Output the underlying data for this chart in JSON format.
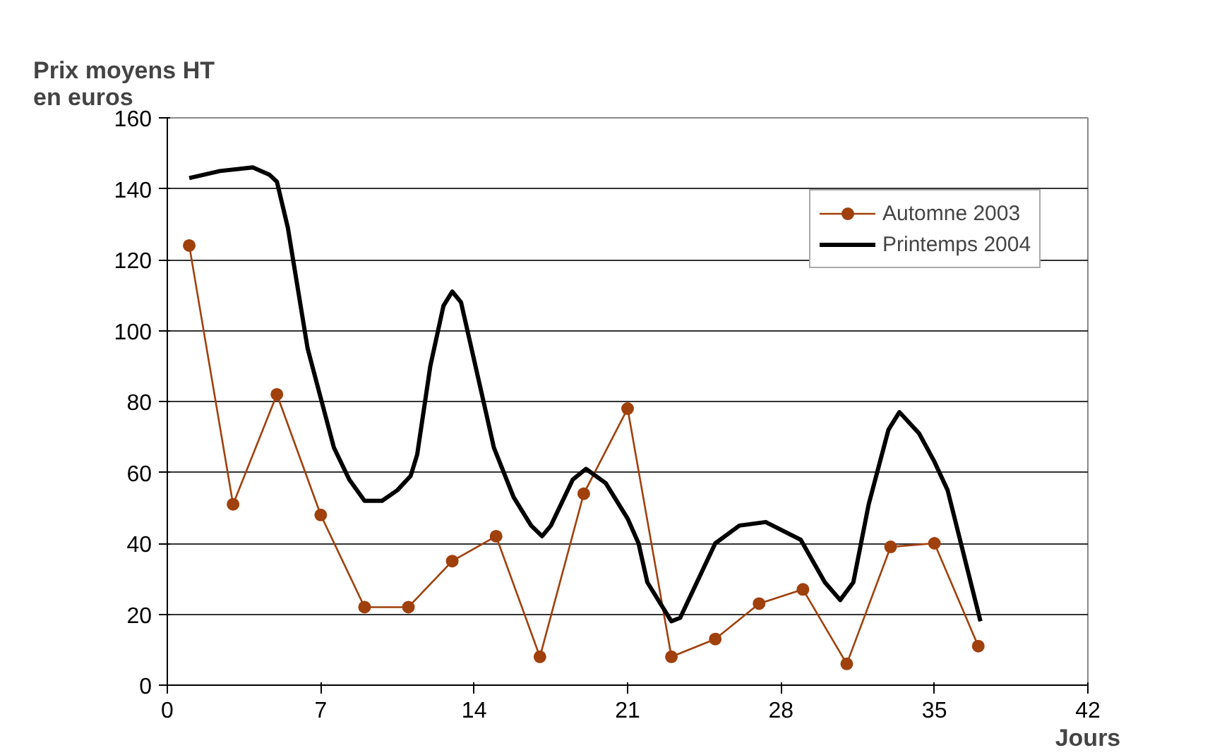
{
  "chart_data": {
    "type": "line",
    "ylabel": "Prix moyens HT\nen euros",
    "xlabel": "Jours",
    "xlim": [
      0,
      42
    ],
    "xticks": [
      0,
      7,
      14,
      21,
      28,
      35,
      42
    ],
    "ylim": [
      0,
      160
    ],
    "yticks": [
      0,
      20,
      40,
      60,
      80,
      100,
      120,
      140,
      160
    ],
    "grid": "y",
    "legend": "top right",
    "series": [
      {
        "name": "Automne 2003",
        "color": "#a0400c",
        "marker": "circle",
        "x": [
          1,
          3,
          5,
          7,
          9,
          11,
          13,
          15,
          17,
          19,
          21,
          23,
          25,
          27,
          29,
          31,
          33,
          35,
          37
        ],
        "values": [
          124,
          51,
          82,
          48,
          22,
          22,
          35,
          42,
          8,
          54,
          78,
          8,
          13,
          23,
          27,
          6,
          39,
          40,
          11
        ]
      },
      {
        "name": "Printemps 2004",
        "color": "#000000",
        "marker": "none",
        "x": [
          1,
          2.4,
          3.9,
          4.65,
          5,
          5.5,
          6.4,
          7,
          7.6,
          8.3,
          9,
          9.8,
          10.5,
          11.1,
          11.4,
          12,
          12.6,
          13,
          13.4,
          14.5,
          14.9,
          15.8,
          16.6,
          17.1,
          17.5,
          18.5,
          19.1,
          20,
          21,
          21.5,
          21.9,
          23,
          23.4,
          25,
          26.1,
          27.3,
          28.9,
          30,
          30.7,
          31.3,
          32,
          32.9,
          33.4,
          34.3,
          35,
          35.6,
          37.1
        ],
        "values": [
          143,
          145,
          146,
          144,
          142,
          129,
          95,
          81,
          67,
          58,
          52,
          52,
          55,
          59,
          65,
          90,
          107,
          111,
          108,
          78,
          67,
          53,
          45,
          42,
          45,
          58,
          61,
          57,
          47,
          40,
          29,
          18,
          19,
          40,
          45,
          46,
          41,
          29,
          24,
          29,
          51,
          72,
          77,
          71,
          63,
          55,
          18
        ]
      }
    ]
  }
}
